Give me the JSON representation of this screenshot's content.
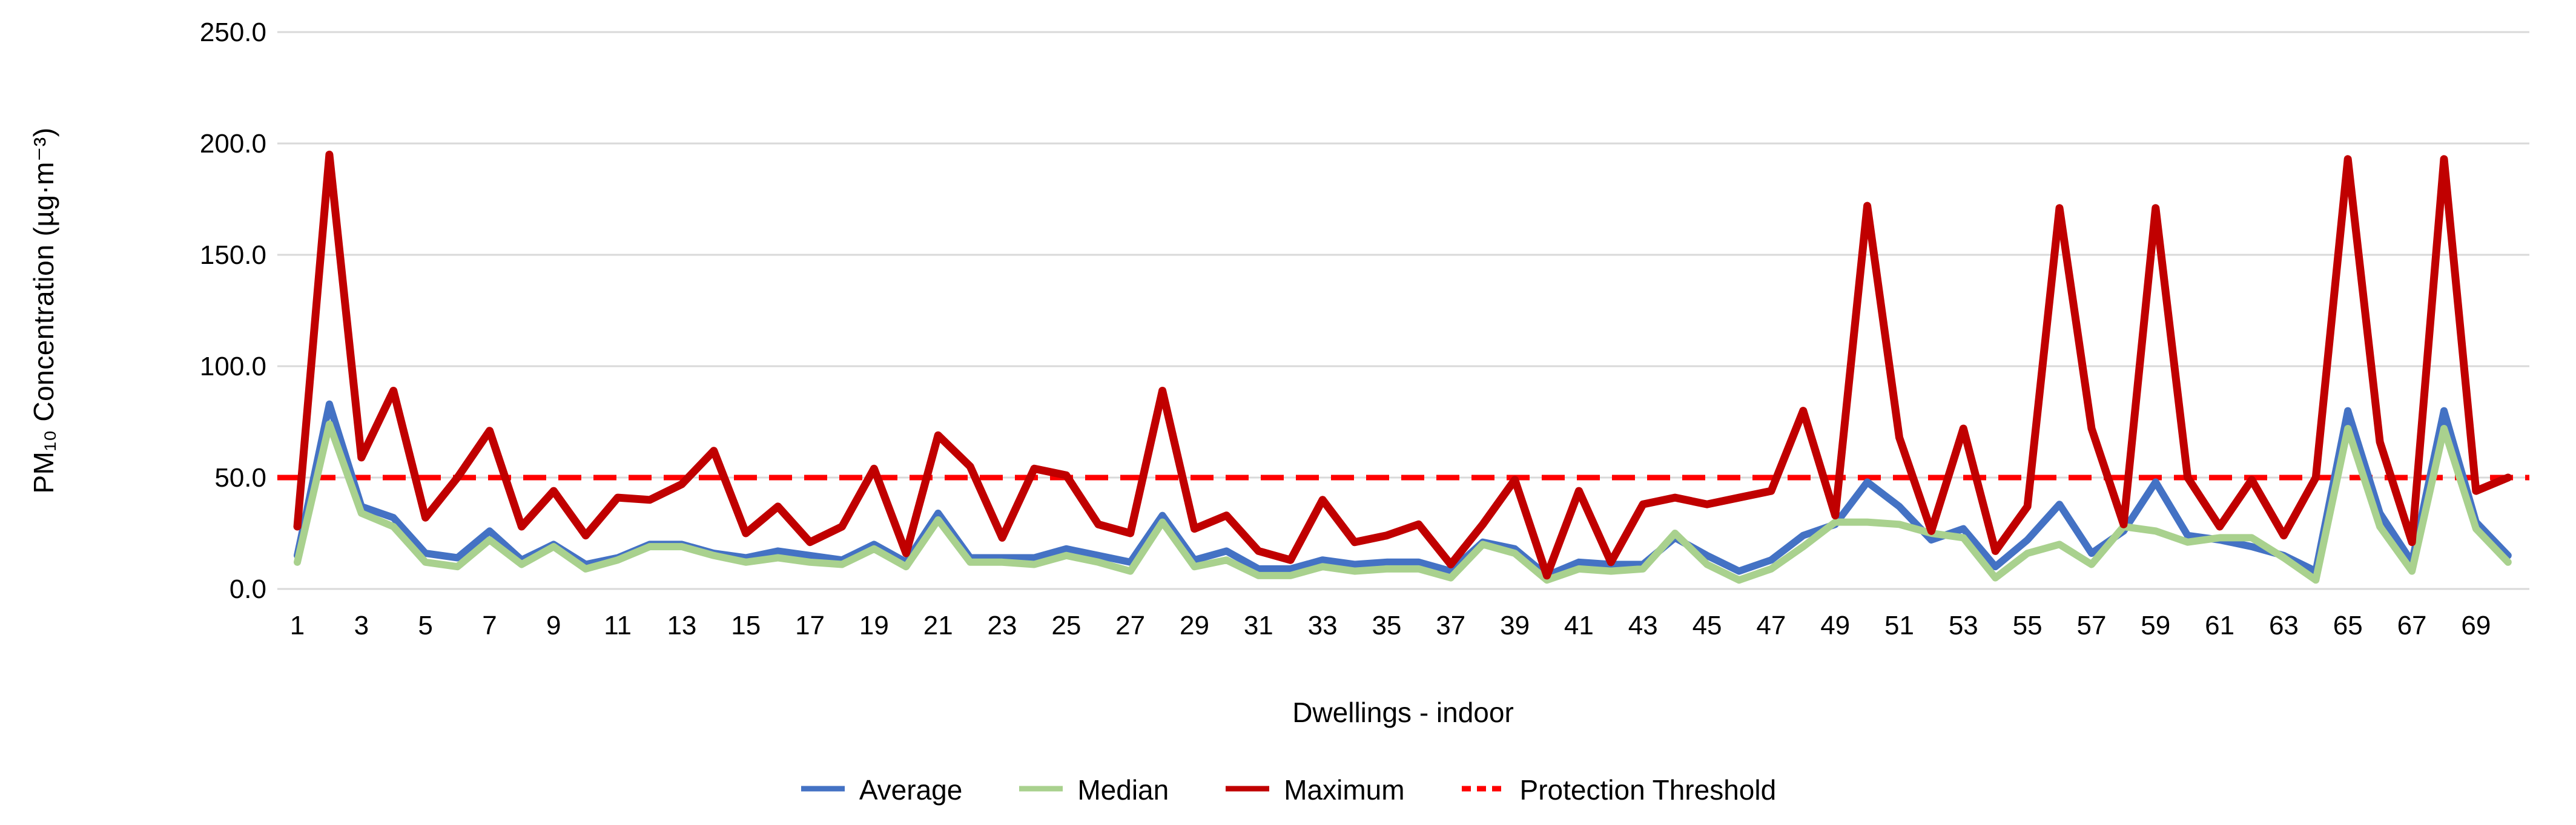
{
  "chart_data": {
    "type": "line",
    "xlabel": "Dwellings - indoor",
    "ylabel": "PM₁₀ Concentration (µg·m⁻³)",
    "ylim": [
      0,
      250
    ],
    "y_ticks": [
      0,
      50,
      100,
      150,
      200,
      250
    ],
    "y_tick_labels": [
      "0.0",
      "50.0",
      "100.0",
      "150.0",
      "200.0",
      "250.0"
    ],
    "x_tick_labels": [
      "1",
      "3",
      "5",
      "7",
      "9",
      "11",
      "13",
      "15",
      "17",
      "19",
      "21",
      "23",
      "25",
      "27",
      "29",
      "31",
      "33",
      "35",
      "37",
      "39",
      "41",
      "43",
      "45",
      "47",
      "49",
      "51",
      "53",
      "55",
      "57",
      "59",
      "61",
      "63",
      "65",
      "67",
      "69"
    ],
    "grid": true,
    "gridline_color": "#D9D9D9",
    "background": "#FFFFFF",
    "legend_position": "bottom",
    "series": [
      {
        "name": "Average",
        "color": "#4472C4",
        "values": [
          15,
          83,
          37,
          32,
          16,
          14,
          26,
          13,
          20,
          11,
          14,
          20,
          20,
          16,
          14,
          17,
          15,
          13,
          20,
          12,
          34,
          14,
          14,
          14,
          18,
          15,
          12,
          33,
          13,
          17,
          9,
          9,
          13,
          11,
          12,
          12,
          8,
          21,
          18,
          6,
          12,
          11,
          11,
          23,
          15,
          8,
          13,
          24,
          29,
          48,
          37,
          22,
          27,
          10,
          22,
          38,
          16,
          26,
          48,
          24,
          22,
          19,
          15,
          8,
          80,
          34,
          12,
          80,
          30,
          15
        ]
      },
      {
        "name": "Median",
        "color": "#A9D18E",
        "values": [
          12,
          74,
          34,
          28,
          12,
          10,
          22,
          11,
          19,
          9,
          13,
          19,
          19,
          15,
          12,
          14,
          12,
          11,
          18,
          10,
          31,
          12,
          12,
          11,
          15,
          12,
          8,
          30,
          10,
          13,
          6,
          6,
          10,
          8,
          9,
          9,
          5,
          20,
          16,
          4,
          9,
          8,
          9,
          25,
          11,
          4,
          9,
          19,
          30,
          30,
          29,
          25,
          23,
          5,
          16,
          20,
          11,
          28,
          26,
          21,
          23,
          23,
          14,
          4,
          72,
          28,
          8,
          72,
          27,
          12
        ]
      },
      {
        "name": "Maximum",
        "color": "#C00000",
        "values": [
          28,
          195,
          59,
          89,
          32,
          50,
          71,
          28,
          44,
          24,
          41,
          40,
          47,
          62,
          25,
          37,
          21,
          28,
          54,
          16,
          69,
          55,
          23,
          54,
          51,
          29,
          25,
          89,
          27,
          33,
          17,
          13,
          40,
          21,
          24,
          29,
          11,
          29,
          49,
          6,
          44,
          12,
          38,
          41,
          38,
          41,
          44,
          80,
          33,
          172,
          68,
          26,
          72,
          17,
          37,
          171,
          72,
          29,
          171,
          50,
          28,
          49,
          24,
          50,
          193,
          66,
          21,
          193,
          44,
          50
        ]
      },
      {
        "name": "Protection Threshold",
        "color": "#FF0000",
        "style": "dashed",
        "value": 50
      }
    ]
  }
}
